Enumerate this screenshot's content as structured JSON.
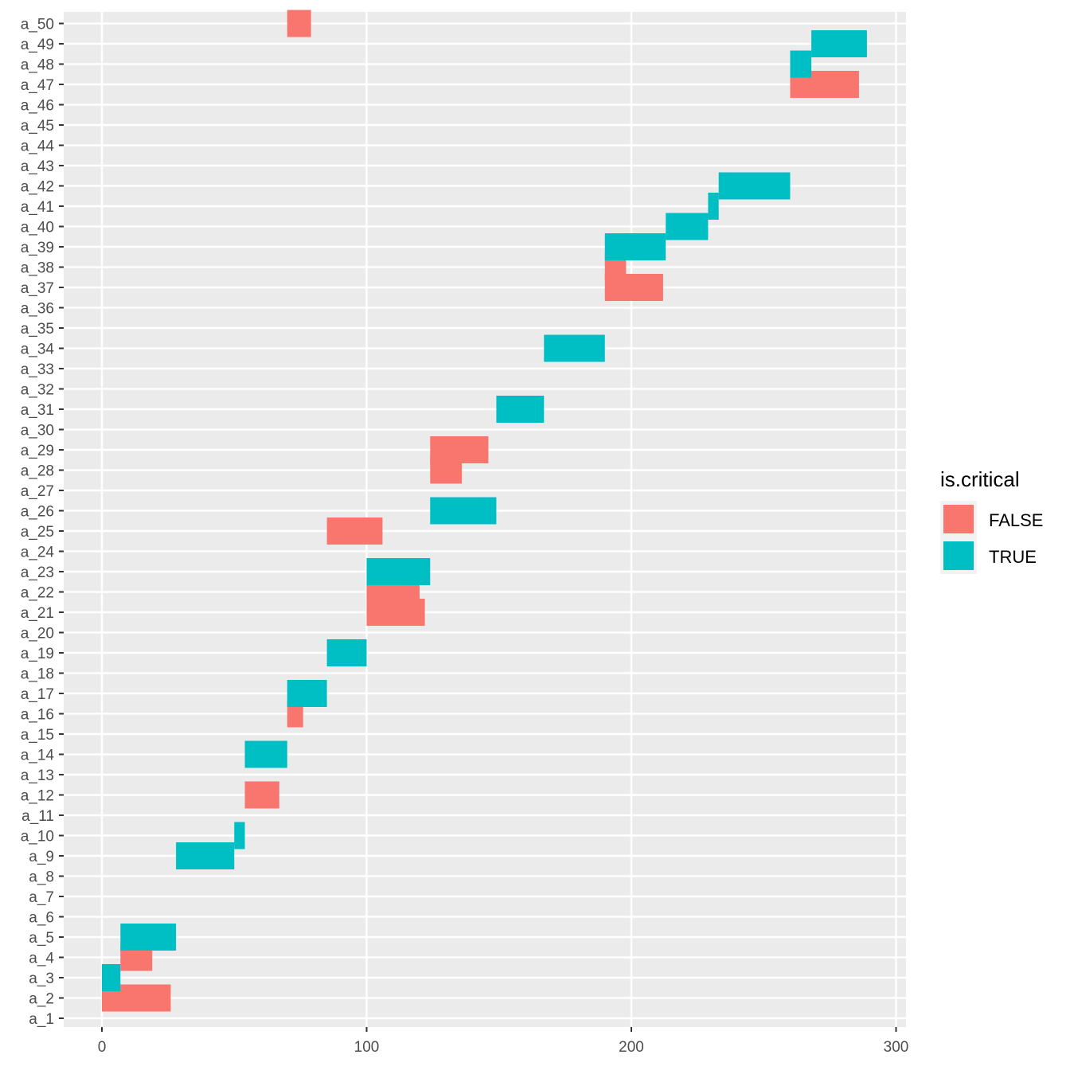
{
  "chart_data": {
    "type": "bar",
    "orientation": "horizontal-segments",
    "title": "",
    "xlabel": "",
    "ylabel": "",
    "xlim": [
      -15,
      304
    ],
    "x_ticks": [
      0,
      100,
      200,
      300
    ],
    "x_tick_labels": [
      "0",
      "100",
      "200",
      "300"
    ],
    "grid": true,
    "legend_position": "right",
    "legend": {
      "title": "is.critical",
      "entries": [
        {
          "label": "FALSE",
          "color": "#F8766D"
        },
        {
          "label": "TRUE",
          "color": "#00BFC4"
        }
      ]
    },
    "categories": [
      "a_1",
      "a_2",
      "a_3",
      "a_4",
      "a_5",
      "a_6",
      "a_7",
      "a_8",
      "a_9",
      "a_10",
      "a_11",
      "a_12",
      "a_13",
      "a_14",
      "a_15",
      "a_16",
      "a_17",
      "a_18",
      "a_19",
      "a_20",
      "a_21",
      "a_22",
      "a_23",
      "a_24",
      "a_25",
      "a_26",
      "a_27",
      "a_28",
      "a_29",
      "a_30",
      "a_31",
      "a_32",
      "a_33",
      "a_34",
      "a_35",
      "a_36",
      "a_37",
      "a_38",
      "a_39",
      "a_40",
      "a_41",
      "a_42",
      "a_43",
      "a_44",
      "a_45",
      "a_46",
      "a_47",
      "a_48",
      "a_49",
      "a_50"
    ],
    "segments": [
      {
        "activity": "a_2",
        "start": 0,
        "end": 26,
        "critical": "FALSE"
      },
      {
        "activity": "a_3",
        "start": 0,
        "end": 7,
        "critical": "TRUE"
      },
      {
        "activity": "a_4",
        "start": 7,
        "end": 19,
        "critical": "FALSE"
      },
      {
        "activity": "a_5",
        "start": 7,
        "end": 28,
        "critical": "TRUE"
      },
      {
        "activity": "a_9",
        "start": 28,
        "end": 50,
        "critical": "TRUE"
      },
      {
        "activity": "a_10",
        "start": 50,
        "end": 54,
        "critical": "TRUE"
      },
      {
        "activity": "a_12",
        "start": 54,
        "end": 67,
        "critical": "FALSE"
      },
      {
        "activity": "a_14",
        "start": 54,
        "end": 70,
        "critical": "TRUE"
      },
      {
        "activity": "a_16",
        "start": 70,
        "end": 76,
        "critical": "FALSE"
      },
      {
        "activity": "a_17",
        "start": 70,
        "end": 85,
        "critical": "TRUE"
      },
      {
        "activity": "a_19",
        "start": 85,
        "end": 100,
        "critical": "TRUE"
      },
      {
        "activity": "a_21",
        "start": 100,
        "end": 122,
        "critical": "FALSE"
      },
      {
        "activity": "a_22",
        "start": 100,
        "end": 120,
        "critical": "FALSE"
      },
      {
        "activity": "a_23",
        "start": 100,
        "end": 124,
        "critical": "TRUE"
      },
      {
        "activity": "a_25",
        "start": 85,
        "end": 106,
        "critical": "FALSE"
      },
      {
        "activity": "a_26",
        "start": 124,
        "end": 149,
        "critical": "TRUE"
      },
      {
        "activity": "a_28",
        "start": 124,
        "end": 136,
        "critical": "FALSE"
      },
      {
        "activity": "a_29",
        "start": 124,
        "end": 146,
        "critical": "FALSE"
      },
      {
        "activity": "a_31",
        "start": 149,
        "end": 167,
        "critical": "TRUE"
      },
      {
        "activity": "a_34",
        "start": 167,
        "end": 190,
        "critical": "TRUE"
      },
      {
        "activity": "a_37",
        "start": 190,
        "end": 212,
        "critical": "FALSE"
      },
      {
        "activity": "a_38",
        "start": 190,
        "end": 198,
        "critical": "FALSE"
      },
      {
        "activity": "a_39",
        "start": 190,
        "end": 213,
        "critical": "TRUE"
      },
      {
        "activity": "a_40",
        "start": 213,
        "end": 229,
        "critical": "TRUE"
      },
      {
        "activity": "a_41",
        "start": 229,
        "end": 233,
        "critical": "TRUE"
      },
      {
        "activity": "a_42",
        "start": 233,
        "end": 260,
        "critical": "TRUE"
      },
      {
        "activity": "a_47",
        "start": 260,
        "end": 286,
        "critical": "FALSE"
      },
      {
        "activity": "a_48",
        "start": 260,
        "end": 268,
        "critical": "TRUE"
      },
      {
        "activity": "a_49",
        "start": 268,
        "end": 289,
        "critical": "TRUE"
      },
      {
        "activity": "a_50",
        "start": 70,
        "end": 79,
        "critical": "FALSE"
      }
    ]
  }
}
